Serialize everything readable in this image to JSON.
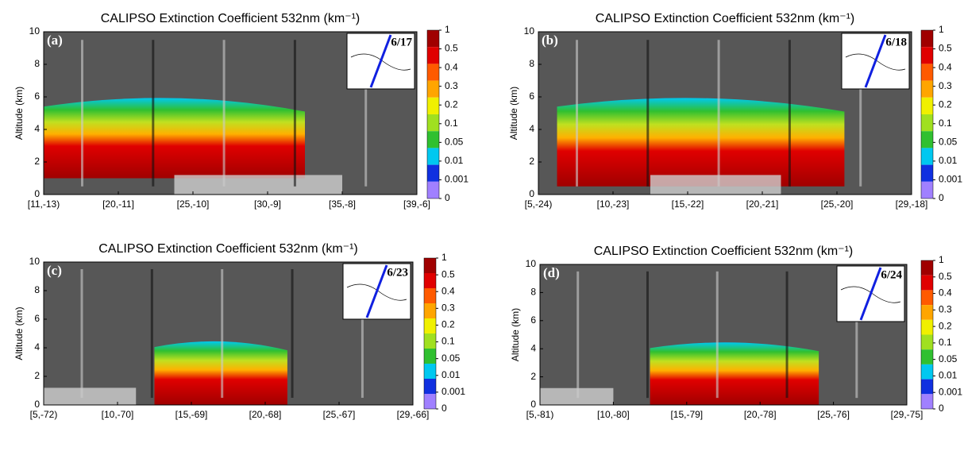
{
  "chart_data": [
    {
      "type": "curtain",
      "title": "CALIPSO Extinction Coefficient 532nm (km⁻¹)",
      "panel_label": "(a)",
      "inset_date": "6/17",
      "ylabel": "Altitude (km)",
      "ylim": [
        0,
        10
      ],
      "yticks": [
        0,
        2,
        4,
        6,
        8,
        10
      ],
      "categories": [
        "[11,-13)",
        "[20,-11]",
        "[25,-10]",
        "[30,-9]",
        "[35,-8]",
        "[39,-6]"
      ],
      "colorbar": {
        "ticks": [
          1,
          0.5,
          0.4,
          0.3,
          0.2,
          0.1,
          0.05,
          0.01,
          0.001,
          0
        ],
        "colors": [
          "#a00000",
          "#e00000",
          "#ff5a00",
          "#ffa500",
          "#f0f000",
          "#a0e020",
          "#30c030",
          "#00c8f0",
          "#1030e0",
          "#a080ff"
        ]
      }
    },
    {
      "type": "curtain",
      "title": "CALIPSO Extinction Coefficient 532nm (km⁻¹)",
      "panel_label": "(b)",
      "inset_date": "6/18",
      "ylabel": "Altitude (km)",
      "ylim": [
        0,
        10
      ],
      "yticks": [
        0,
        2,
        4,
        6,
        8,
        10
      ],
      "categories": [
        "[5,-24)",
        "[10,-23]",
        "[15,-22]",
        "[20,-21]",
        "[25,-20]",
        "[29,-18]"
      ],
      "colorbar": {
        "ticks": [
          1,
          0.5,
          0.4,
          0.3,
          0.2,
          0.1,
          0.05,
          0.01,
          0.001,
          0
        ],
        "colors": [
          "#a00000",
          "#e00000",
          "#ff5a00",
          "#ffa500",
          "#f0f000",
          "#a0e020",
          "#30c030",
          "#00c8f0",
          "#1030e0",
          "#a080ff"
        ]
      }
    },
    {
      "type": "curtain",
      "title": "CALIPSO Extinction Coefficient 532nm (km⁻¹)",
      "panel_label": "(c)",
      "inset_date": "6/23",
      "ylabel": "Altitude (km)",
      "ylim": [
        0,
        10
      ],
      "yticks": [
        0,
        2,
        4,
        6,
        8,
        10
      ],
      "categories": [
        "[5,-72)",
        "[10,-70]",
        "[15,-69]",
        "[20,-68]",
        "[25,-67]",
        "[29,-66]"
      ],
      "colorbar": {
        "ticks": [
          1,
          0.5,
          0.4,
          0.3,
          0.2,
          0.1,
          0.05,
          0.01,
          0.001,
          0
        ],
        "colors": [
          "#a00000",
          "#e00000",
          "#ff5a00",
          "#ffa500",
          "#f0f000",
          "#a0e020",
          "#30c030",
          "#00c8f0",
          "#1030e0",
          "#a080ff"
        ]
      }
    },
    {
      "type": "curtain",
      "title": "CALIPSO Extinction Coefficient 532nm (km⁻¹)",
      "panel_label": "(d)",
      "inset_date": "6/24",
      "ylabel": "Altitude (km)",
      "ylim": [
        0,
        10
      ],
      "yticks": [
        0,
        2,
        4,
        6,
        8,
        10
      ],
      "categories": [
        "[5,-81)",
        "[10,-80]",
        "[15,-79]",
        "[20,-78]",
        "[25,-76]",
        "[29,-75]"
      ],
      "colorbar": {
        "ticks": [
          1,
          0.5,
          0.4,
          0.3,
          0.2,
          0.1,
          0.05,
          0.01,
          0.001,
          0
        ],
        "colors": [
          "#a00000",
          "#e00000",
          "#ff5a00",
          "#ffa500",
          "#f0f000",
          "#a0e020",
          "#30c030",
          "#00c8f0",
          "#1030e0",
          "#a080ff"
        ]
      }
    }
  ]
}
